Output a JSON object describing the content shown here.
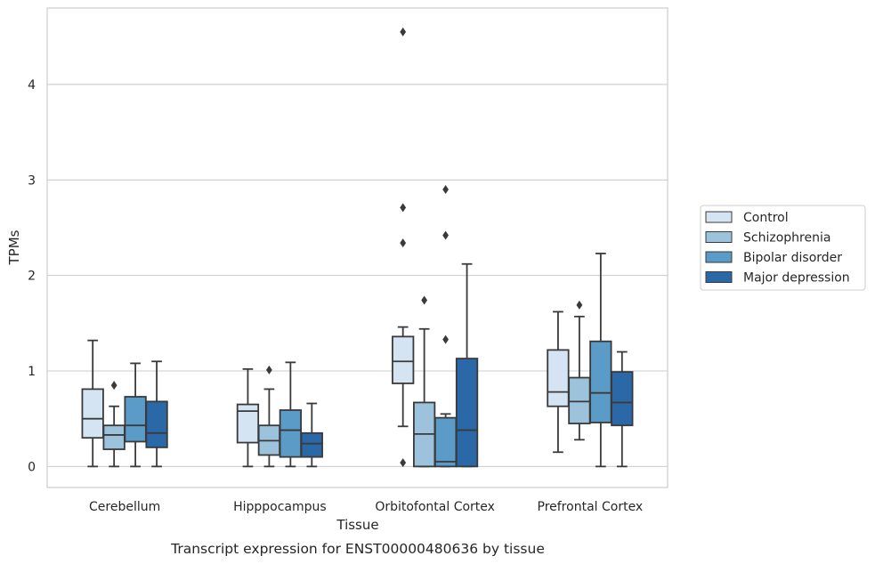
{
  "chart_data": {
    "type": "boxplot",
    "xlabel": "Tissue",
    "ylabel": "TPMs",
    "caption": "Transcript expression for ENST00000480636 by tissue",
    "ylim": [
      -0.22,
      4.8
    ],
    "yticks": [
      0,
      1,
      2,
      3,
      4
    ],
    "grid": true,
    "legend_position": "right",
    "categories": [
      "Cerebellum",
      "Hipppocampus",
      "Orbitofontal Cortex",
      "Prefrontal Cortex"
    ],
    "series": [
      {
        "name": "Control",
        "color": "#d5e4f3",
        "boxes": [
          {
            "whislo": 0.0,
            "q1": 0.3,
            "med": 0.5,
            "q3": 0.81,
            "whishi": 1.32,
            "fliers": []
          },
          {
            "whislo": 0.0,
            "q1": 0.25,
            "med": 0.58,
            "q3": 0.65,
            "whishi": 1.02,
            "fliers": []
          },
          {
            "whislo": 0.42,
            "q1": 0.87,
            "med": 1.1,
            "q3": 1.36,
            "whishi": 1.46,
            "fliers": [
              0.04,
              2.34,
              2.71,
              4.55
            ]
          },
          {
            "whislo": 0.15,
            "q1": 0.63,
            "med": 0.78,
            "q3": 1.22,
            "whishi": 1.62,
            "fliers": []
          }
        ]
      },
      {
        "name": "Schizophrenia",
        "color": "#9cc2dc",
        "boxes": [
          {
            "whislo": 0.0,
            "q1": 0.18,
            "med": 0.33,
            "q3": 0.43,
            "whishi": 0.63,
            "fliers": [
              0.85
            ]
          },
          {
            "whislo": 0.0,
            "q1": 0.12,
            "med": 0.27,
            "q3": 0.43,
            "whishi": 0.81,
            "fliers": [
              1.01
            ]
          },
          {
            "whislo": 0.0,
            "q1": 0.0,
            "med": 0.34,
            "q3": 0.67,
            "whishi": 1.44,
            "fliers": [
              1.74
            ]
          },
          {
            "whislo": 0.28,
            "q1": 0.45,
            "med": 0.68,
            "q3": 0.93,
            "whishi": 1.57,
            "fliers": [
              1.69
            ]
          }
        ]
      },
      {
        "name": "Bipolar disorder",
        "color": "#5b9bc8",
        "boxes": [
          {
            "whislo": 0.0,
            "q1": 0.26,
            "med": 0.43,
            "q3": 0.73,
            "whishi": 1.08,
            "fliers": []
          },
          {
            "whislo": 0.0,
            "q1": 0.1,
            "med": 0.38,
            "q3": 0.59,
            "whishi": 1.09,
            "fliers": []
          },
          {
            "whislo": 0.0,
            "q1": 0.0,
            "med": 0.05,
            "q3": 0.51,
            "whishi": 0.55,
            "fliers": [
              1.33,
              2.42,
              2.9
            ]
          },
          {
            "whislo": 0.0,
            "q1": 0.46,
            "med": 0.77,
            "q3": 1.31,
            "whishi": 2.23,
            "fliers": []
          }
        ]
      },
      {
        "name": "Major depression",
        "color": "#2a68a8",
        "boxes": [
          {
            "whislo": 0.0,
            "q1": 0.2,
            "med": 0.35,
            "q3": 0.68,
            "whishi": 1.1,
            "fliers": []
          },
          {
            "whislo": 0.0,
            "q1": 0.1,
            "med": 0.24,
            "q3": 0.35,
            "whishi": 0.66,
            "fliers": []
          },
          {
            "whislo": 0.0,
            "q1": 0.0,
            "med": 0.38,
            "q3": 1.13,
            "whishi": 2.12,
            "fliers": []
          },
          {
            "whislo": 0.0,
            "q1": 0.43,
            "med": 0.67,
            "q3": 0.99,
            "whishi": 1.2,
            "fliers": []
          }
        ]
      }
    ]
  }
}
